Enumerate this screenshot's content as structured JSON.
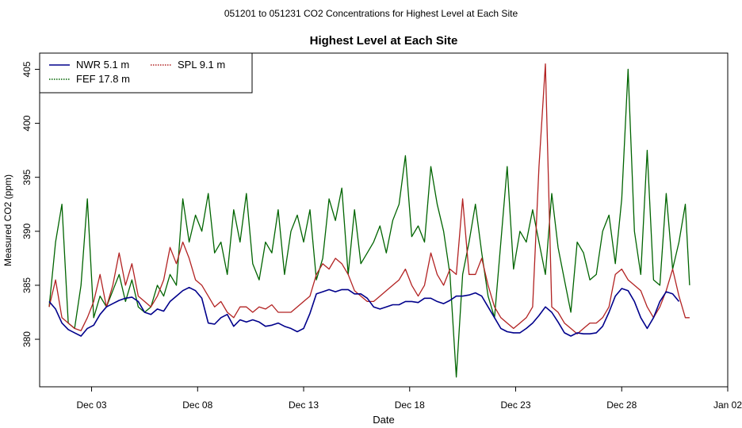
{
  "figure": {
    "suptitle": "051201  to  051231 CO2 Concentrations for Highest Level at Each Site"
  },
  "chart_data": {
    "type": "line",
    "title": "Highest Level at Each Site",
    "xlabel": "Date",
    "ylabel": "Measured CO2 (ppm)",
    "x_unit": "days since Nov 30 (Dec 01 = 1)",
    "xlim": [
      0.55,
      33.0
    ],
    "ylim": [
      375.6,
      406.5
    ],
    "x_ticks": [
      {
        "value": 3,
        "label": "Dec 03"
      },
      {
        "value": 8,
        "label": "Dec 08"
      },
      {
        "value": 13,
        "label": "Dec 13"
      },
      {
        "value": 18,
        "label": "Dec 18"
      },
      {
        "value": 23,
        "label": "Dec 23"
      },
      {
        "value": 28,
        "label": "Dec 28"
      },
      {
        "value": 33,
        "label": "Jan 02"
      }
    ],
    "y_ticks": [
      {
        "value": 380,
        "label": "380"
      },
      {
        "value": 385,
        "label": "385"
      },
      {
        "value": 390,
        "label": "390"
      },
      {
        "value": 395,
        "label": "395"
      },
      {
        "value": 400,
        "label": "400"
      },
      {
        "value": 405,
        "label": "405"
      }
    ],
    "legend": {
      "position": "top-left",
      "entries": [
        {
          "label": "NWR   5.1 m",
          "color": "#00008B",
          "style": "solid"
        },
        {
          "label": "SPL   9.1 m",
          "color": "#B22222",
          "style": "dotted"
        },
        {
          "label": "FEF   17.8 m",
          "color": "#006400",
          "style": "dotted"
        }
      ]
    },
    "series": [
      {
        "name": "NWR   5.1 m",
        "color": "#00008B",
        "x": [
          1.0,
          1.3,
          1.6,
          1.9,
          2.2,
          2.5,
          2.8,
          3.1,
          3.4,
          3.7,
          4.0,
          4.3,
          4.6,
          4.9,
          5.2,
          5.5,
          5.8,
          6.1,
          6.4,
          6.7,
          7.0,
          7.3,
          7.6,
          7.9,
          8.2,
          8.5,
          8.8,
          9.1,
          9.4,
          9.7,
          10.0,
          10.3,
          10.6,
          10.9,
          11.2,
          11.5,
          11.8,
          12.1,
          12.4,
          12.7,
          13.0,
          13.3,
          13.6,
          13.9,
          14.2,
          14.5,
          14.8,
          15.1,
          15.4,
          15.7,
          16.0,
          16.3,
          16.6,
          16.9,
          17.2,
          17.5,
          17.8,
          18.1,
          18.4,
          18.7,
          19.0,
          19.3,
          19.6,
          19.9,
          20.2,
          20.5,
          20.8,
          21.1,
          21.4,
          21.7,
          22.0,
          22.3,
          22.6,
          22.9,
          23.2,
          23.5,
          23.8,
          24.1,
          24.4,
          24.7,
          25.0,
          25.3,
          25.6,
          25.9,
          26.2,
          26.5,
          26.8,
          27.1,
          27.4,
          27.7,
          28.0,
          28.3,
          28.6,
          28.9,
          29.2,
          29.5,
          29.8,
          30.1,
          30.4,
          30.7
        ],
        "values": [
          383.5,
          382.8,
          381.5,
          380.9,
          380.6,
          380.3,
          381.0,
          381.3,
          382.3,
          383.0,
          383.3,
          383.6,
          383.8,
          383.9,
          383.5,
          382.5,
          382.3,
          382.8,
          382.6,
          383.5,
          384.0,
          384.5,
          384.8,
          384.5,
          383.8,
          381.5,
          381.4,
          382.0,
          382.3,
          381.2,
          381.8,
          381.6,
          381.8,
          381.6,
          381.2,
          381.3,
          381.5,
          381.2,
          381.0,
          380.7,
          381.0,
          382.4,
          384.2,
          384.4,
          384.6,
          384.4,
          384.6,
          384.6,
          384.2,
          384.2,
          383.8,
          383.0,
          382.8,
          383.0,
          383.2,
          383.2,
          383.5,
          383.5,
          383.4,
          383.8,
          383.8,
          383.5,
          383.3,
          383.6,
          384.0,
          384.0,
          384.1,
          384.3,
          384.0,
          383.0,
          382.0,
          381.0,
          380.7,
          380.6,
          380.6,
          381.0,
          381.5,
          382.2,
          383.0,
          382.5,
          381.6,
          380.6,
          380.3,
          380.6,
          380.5,
          380.5,
          380.6,
          381.2,
          382.5,
          384.0,
          384.7,
          384.5,
          383.5,
          382.0,
          381.0,
          382.0,
          383.5,
          384.4,
          384.2,
          383.5
        ]
      },
      {
        "name": "SPL   9.1 m",
        "color": "#B22222",
        "x": [
          1.0,
          1.3,
          1.6,
          1.9,
          2.2,
          2.5,
          2.8,
          3.1,
          3.4,
          3.7,
          4.0,
          4.3,
          4.6,
          4.9,
          5.2,
          5.5,
          5.8,
          6.1,
          6.4,
          6.7,
          7.0,
          7.3,
          7.6,
          7.9,
          8.2,
          8.5,
          8.8,
          9.1,
          9.4,
          9.7,
          10.0,
          10.3,
          10.6,
          10.9,
          11.2,
          11.5,
          11.8,
          12.1,
          12.4,
          12.7,
          13.0,
          13.3,
          13.6,
          13.9,
          14.2,
          14.5,
          14.8,
          15.1,
          15.4,
          15.7,
          16.0,
          16.3,
          16.6,
          16.9,
          17.2,
          17.5,
          17.8,
          18.1,
          18.4,
          18.7,
          19.0,
          19.3,
          19.6,
          19.9,
          20.2,
          20.5,
          20.8,
          21.1,
          21.4,
          21.7,
          22.0,
          22.3,
          22.6,
          22.9,
          23.2,
          23.5,
          23.8,
          24.1,
          24.4,
          24.7,
          25.0,
          25.3,
          25.6,
          25.9,
          26.2,
          26.5,
          26.8,
          27.1,
          27.4,
          27.7,
          28.0,
          28.3,
          28.6,
          28.9,
          29.2,
          29.5,
          29.8,
          30.1,
          30.4,
          30.7,
          31.0,
          31.2
        ],
        "values": [
          383.0,
          385.5,
          382.0,
          381.5,
          381.0,
          380.8,
          382.0,
          383.5,
          386.0,
          383.0,
          385.0,
          388.0,
          385.0,
          387.0,
          384.0,
          383.5,
          383.0,
          384.0,
          385.5,
          388.5,
          387.0,
          389.0,
          387.5,
          385.5,
          385.0,
          384.0,
          383.0,
          383.5,
          382.5,
          382.0,
          383.0,
          383.0,
          382.5,
          383.0,
          382.8,
          383.2,
          382.5,
          382.5,
          382.5,
          383.0,
          383.5,
          384.0,
          386.0,
          387.0,
          386.5,
          387.5,
          387.0,
          386.0,
          384.5,
          384.0,
          383.5,
          383.5,
          384.0,
          384.5,
          385.0,
          385.5,
          386.5,
          385.0,
          384.0,
          385.0,
          388.0,
          386.0,
          385.0,
          386.5,
          386.0,
          393.0,
          386.0,
          386.0,
          387.5,
          385.0,
          383.0,
          382.0,
          381.5,
          381.0,
          381.5,
          382.0,
          383.0,
          396.0,
          405.5,
          383.0,
          382.5,
          381.5,
          381.0,
          380.5,
          381.0,
          381.5,
          381.5,
          382.0,
          383.0,
          386.0,
          386.5,
          385.5,
          385.0,
          384.5,
          383.0,
          382.0,
          383.0,
          384.5,
          386.5,
          384.0,
          382.0,
          382.0
        ]
      },
      {
        "name": "FEF   17.8 m",
        "color": "#006400",
        "x": [
          1.0,
          1.3,
          1.6,
          1.9,
          2.2,
          2.5,
          2.8,
          3.1,
          3.4,
          3.7,
          4.0,
          4.3,
          4.6,
          4.9,
          5.2,
          5.5,
          5.8,
          6.1,
          6.4,
          6.7,
          7.0,
          7.3,
          7.6,
          7.9,
          8.2,
          8.5,
          8.8,
          9.1,
          9.4,
          9.7,
          10.0,
          10.3,
          10.6,
          10.9,
          11.2,
          11.5,
          11.8,
          12.1,
          12.4,
          12.7,
          13.0,
          13.3,
          13.6,
          13.9,
          14.2,
          14.5,
          14.8,
          15.1,
          15.4,
          15.7,
          16.0,
          16.3,
          16.6,
          16.9,
          17.2,
          17.5,
          17.8,
          18.1,
          18.4,
          18.7,
          19.0,
          19.3,
          19.6,
          19.9,
          20.2,
          20.5,
          20.8,
          21.1,
          21.4,
          21.7,
          22.0,
          22.3,
          22.6,
          22.9,
          23.2,
          23.5,
          23.8,
          24.1,
          24.4,
          24.7,
          25.0,
          25.3,
          25.6,
          25.9,
          26.2,
          26.5,
          26.8,
          27.1,
          27.4,
          27.7,
          28.0,
          28.3,
          28.6,
          28.9,
          29.2,
          29.5,
          29.8,
          30.1,
          30.4,
          30.7,
          31.0,
          31.2
        ],
        "values": [
          383.0,
          389.0,
          392.5,
          381.5,
          381.0,
          385.0,
          393.0,
          382.0,
          384.0,
          383.0,
          384.5,
          386.0,
          383.5,
          385.5,
          383.0,
          382.5,
          383.0,
          385.0,
          384.0,
          386.0,
          385.0,
          393.0,
          389.0,
          391.5,
          390.0,
          393.5,
          388.0,
          389.0,
          386.0,
          392.0,
          389.0,
          393.5,
          387.0,
          385.5,
          389.0,
          388.0,
          392.0,
          386.0,
          390.0,
          391.5,
          389.0,
          392.0,
          385.5,
          387.5,
          393.0,
          391.0,
          394.0,
          386.0,
          392.0,
          387.0,
          388.0,
          389.0,
          390.5,
          388.0,
          391.0,
          392.5,
          397.0,
          389.5,
          390.5,
          389.0,
          396.0,
          392.5,
          390.0,
          386.0,
          376.5,
          386.0,
          389.0,
          392.5,
          388.0,
          384.0,
          382.0,
          389.0,
          396.0,
          386.5,
          390.0,
          389.0,
          392.0,
          389.0,
          386.0,
          393.5,
          388.5,
          385.5,
          382.5,
          389.0,
          388.0,
          385.5,
          386.0,
          390.0,
          391.5,
          387.0,
          393.0,
          405.0,
          390.0,
          386.0,
          397.5,
          385.5,
          385.0,
          393.5,
          386.5,
          389.0,
          392.5,
          385.0
        ]
      }
    ]
  }
}
